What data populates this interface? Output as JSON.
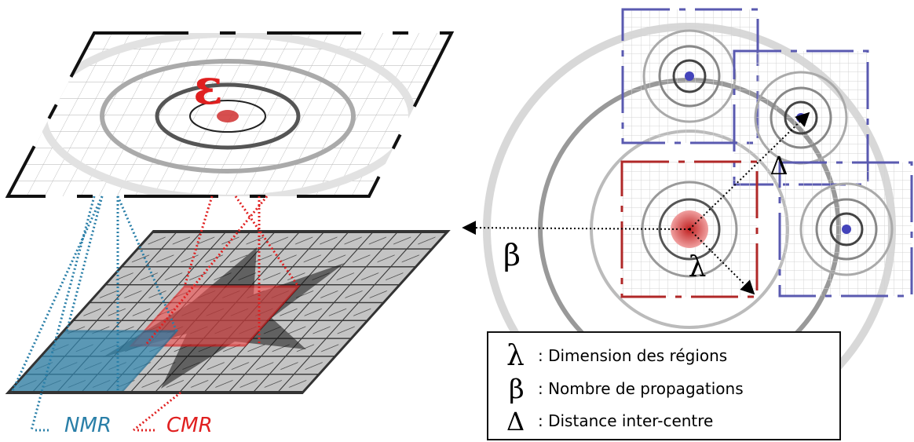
{
  "labels": {
    "epsilon": "ε",
    "nmr": "NMR",
    "cmr": "CMR",
    "beta": "β",
    "lambda": "λ",
    "delta": "Δ"
  },
  "legend": [
    {
      "symbol": "λ",
      "text": ": Dimension des régions"
    },
    {
      "symbol": "β",
      "text": ": Nombre de propagations"
    },
    {
      "symbol": "Δ",
      "text": ": Distance inter-centre"
    }
  ]
}
